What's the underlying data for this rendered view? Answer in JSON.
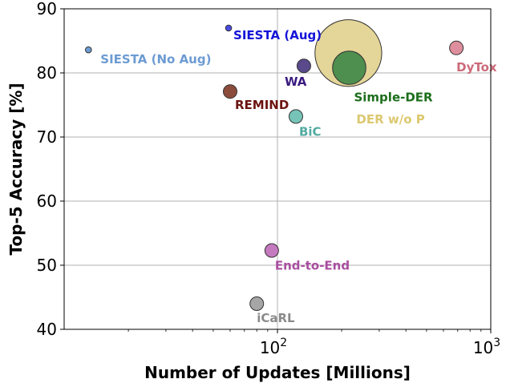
{
  "chart_data": {
    "type": "scatter",
    "title": "",
    "xlabel": "Number of Updates [Millions]",
    "ylabel": "Top-5 Accuracy [%]",
    "x_scale": "log",
    "xlim": [
      10,
      1000
    ],
    "ylim": [
      40,
      90
    ],
    "x_ticks": [
      {
        "value": 100,
        "base": "10",
        "exp": "2"
      },
      {
        "value": 1000,
        "base": "10",
        "exp": "3"
      }
    ],
    "y_ticks": [
      "40",
      "50",
      "60",
      "70",
      "80",
      "90"
    ],
    "grid": "major",
    "colors": {
      "axis": "#000000",
      "grid": "#b0b0b0",
      "background": "#ffffff"
    },
    "points": [
      {
        "label": "SIESTA (No Aug)",
        "x": 13,
        "y": 83.6,
        "size": 1,
        "color": "#6c9bd2",
        "label_color": "#6c9bd2"
      },
      {
        "label": "SIESTA (Aug)",
        "x": 59,
        "y": 87.0,
        "size": 1,
        "color": "#4a4ae0",
        "label_color": "#1414d8"
      },
      {
        "label": "REMIND",
        "x": 60,
        "y": 77.1,
        "size": 5,
        "color": "#8b4c3c",
        "label_color": "#6b1410"
      },
      {
        "label": "BiC",
        "x": 122,
        "y": 73.2,
        "size": 5,
        "color": "#76c4b8",
        "label_color": "#52aaa0"
      },
      {
        "label": "WA",
        "x": 133,
        "y": 81.1,
        "size": 5,
        "color": "#5a4a8c",
        "label_color": "#3a1a80"
      },
      {
        "label": "DER w/o P",
        "x": 215,
        "y": 83.1,
        "size": 120,
        "color": "#e4d598",
        "label_color": "#dcc870"
      },
      {
        "label": "Simple-DER",
        "x": 217,
        "y": 80.8,
        "size": 30,
        "color": "#4e8e4e",
        "label_color": "#1c6e1c"
      },
      {
        "label": "DyTox",
        "x": 690,
        "y": 83.9,
        "size": 5,
        "color": "#de8e9c",
        "label_color": "#cc6a7a"
      },
      {
        "label": "End-to-End",
        "x": 94,
        "y": 52.3,
        "size": 5,
        "color": "#c47abf",
        "label_color": "#a84ea0"
      },
      {
        "label": "iCaRL",
        "x": 80,
        "y": 44.0,
        "size": 5,
        "color": "#a6a6a6",
        "label_color": "#8a8a8a"
      }
    ]
  }
}
